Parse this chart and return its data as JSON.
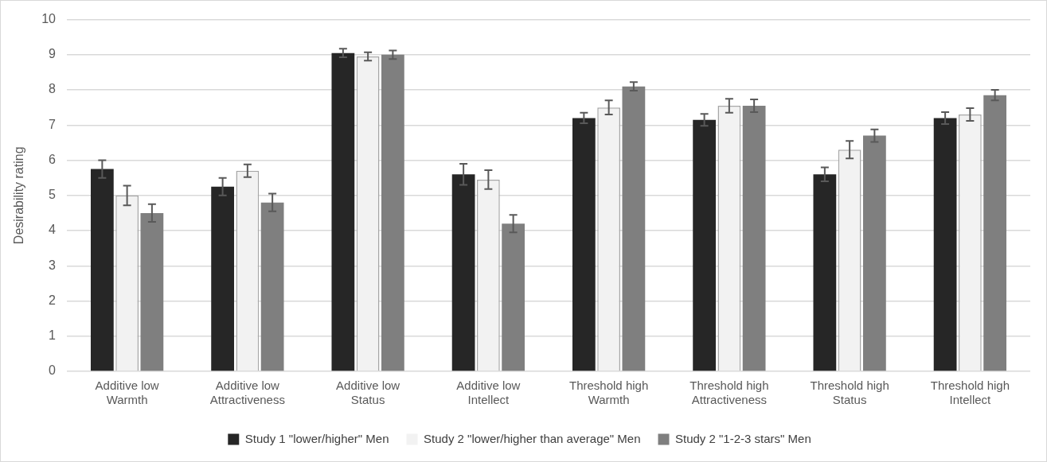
{
  "chart_data": {
    "type": "bar",
    "ylabel": "Desirability rating",
    "categories": [
      "Additive low\nWarmth",
      "Additive low\nAttractiveness",
      "Additive low\nStatus",
      "Additive low\nIntellect",
      "Threshold high\nWarmth",
      "Threshold high\nAttractiveness",
      "Threshold high\nStatus",
      "Threshold high\nIntellect"
    ],
    "series": [
      {
        "name": "Study 1 \"lower/higher\" Men",
        "color": "#262626",
        "values": [
          5.75,
          5.25,
          9.05,
          5.6,
          7.2,
          7.15,
          5.6,
          7.2
        ],
        "errors": [
          0.25,
          0.25,
          0.12,
          0.3,
          0.15,
          0.17,
          0.2,
          0.17
        ]
      },
      {
        "name": "Study 2 \"lower/higher than average\" Men",
        "color": "#f2f2f2",
        "values": [
          5.0,
          5.7,
          8.95,
          5.45,
          7.5,
          7.55,
          6.3,
          7.3
        ],
        "errors": [
          0.28,
          0.18,
          0.12,
          0.27,
          0.2,
          0.2,
          0.25,
          0.18
        ]
      },
      {
        "name": "Study 2 \"1-2-3 stars\" Men",
        "color": "#7f7f7f",
        "values": [
          4.5,
          4.8,
          9.0,
          4.2,
          8.1,
          7.55,
          6.7,
          7.85
        ],
        "errors": [
          0.25,
          0.25,
          0.12,
          0.25,
          0.12,
          0.18,
          0.18,
          0.15
        ]
      }
    ],
    "ylim": [
      0,
      10
    ],
    "yticks": [
      0,
      1,
      2,
      3,
      4,
      5,
      6,
      7,
      8,
      9,
      10
    ],
    "grid": "y",
    "legend": "bottom"
  }
}
